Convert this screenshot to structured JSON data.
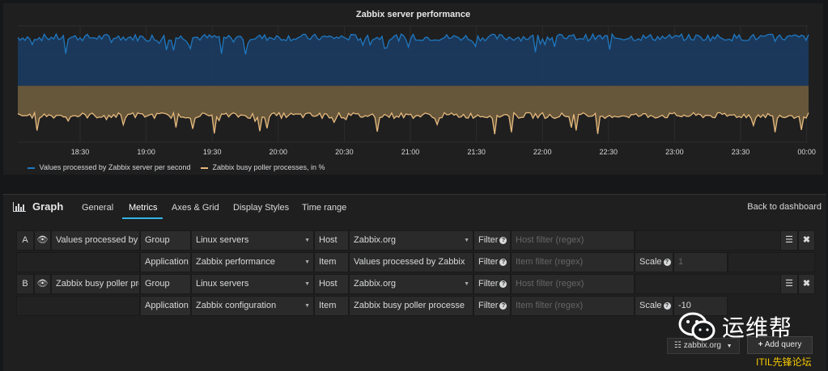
{
  "panel": {
    "title": "Zabbix server performance"
  },
  "chart_data": {
    "type": "area",
    "x_ticks": [
      "18:30",
      "19:00",
      "19:30",
      "20:00",
      "20:30",
      "21:00",
      "21:30",
      "22:00",
      "22:30",
      "23:00",
      "23:30",
      "00:00"
    ],
    "series": [
      {
        "name": "Values processed by Zabbix server per second",
        "color": "#1f78c1",
        "fill": "#1b3a5e",
        "approx_level": 0.9
      },
      {
        "name": "Zabbix busy poller processes, in %",
        "color": "#e5b97d",
        "fill": "#6a5a3c",
        "approx_level": 0.23
      }
    ]
  },
  "editor": {
    "title": "Graph",
    "tabs": [
      "General",
      "Metrics",
      "Axes & Grid",
      "Display Styles",
      "Time range"
    ],
    "active_tab": "Metrics",
    "back_label": "Back to dashboard",
    "queries": [
      {
        "ref": "A",
        "alias": "Values processed by",
        "group_label": "Group",
        "group_value": "Linux servers",
        "host_label": "Host",
        "host_value": "Zabbix.org",
        "filter_label": "Filter",
        "host_filter_placeholder": "Host filter (regex)",
        "application_label": "Application",
        "application_value": "Zabbix performance",
        "item_label": "Item",
        "item_value": "Values processed by Zabbix",
        "item_filter_placeholder": "Item filter (regex)",
        "scale_label": "Scale",
        "scale_value": "1"
      },
      {
        "ref": "B",
        "alias": "Zabbix busy poller pro",
        "group_label": "Group",
        "group_value": "Linux servers",
        "host_label": "Host",
        "host_value": "Zabbix.org",
        "filter_label": "Filter",
        "host_filter_placeholder": "Host filter (regex)",
        "application_label": "Application",
        "application_value": "Zabbix configuration",
        "item_label": "Item",
        "item_value": "Zabbix busy poller processe",
        "item_filter_placeholder": "Item filter (regex)",
        "scale_label": "Scale",
        "scale_value": "-10"
      }
    ],
    "datasource": "zabbix.org",
    "add_query_label": "Add query"
  },
  "watermark": {
    "title": "运维帮",
    "subtitle": "ITIL先锋论坛"
  },
  "icons": {
    "eye": "eye-icon",
    "menu": "hamburger-menu-icon",
    "remove": "close-icon",
    "graph": "bar-chart-icon",
    "database": "database-icon",
    "plus": "plus-icon",
    "caret": "caret-down-icon",
    "help": "question-circle-icon",
    "wechat": "wechat-icon"
  }
}
